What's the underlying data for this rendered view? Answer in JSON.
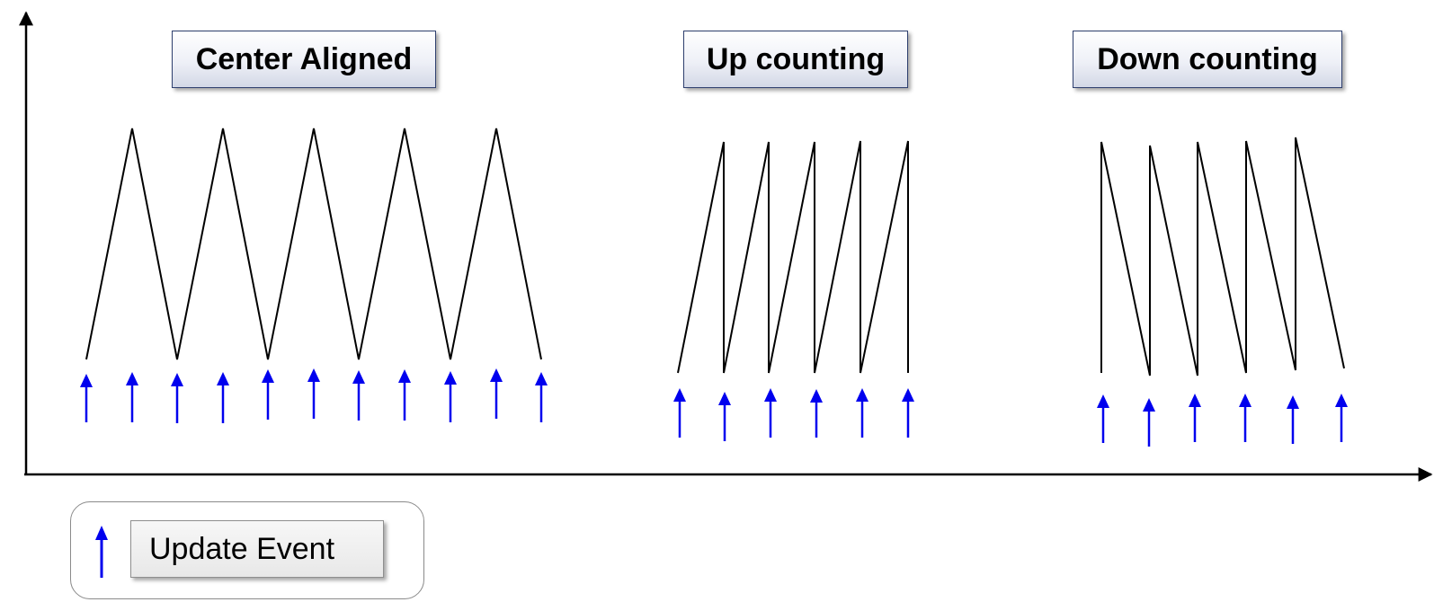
{
  "modes": [
    {
      "id": "center",
      "label": "Center Aligned",
      "peaks": 5
    },
    {
      "id": "up",
      "label": "Up counting",
      "cycles": 5
    },
    {
      "id": "down",
      "label": "Down counting",
      "cycles": 5
    }
  ],
  "legend": {
    "label": "Update Event",
    "arrow_icon": "blue-up-arrow-icon"
  },
  "colors": {
    "waveform": "#000000",
    "update_event_arrow": "#0000ee",
    "axis": "#000000"
  }
}
